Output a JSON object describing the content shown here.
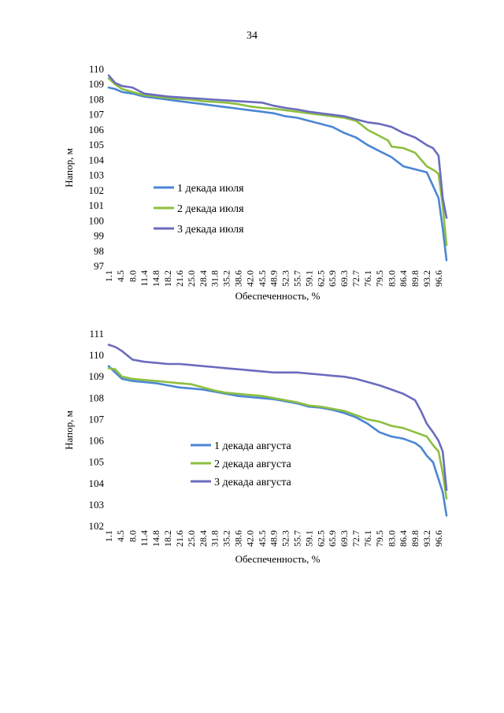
{
  "page": {
    "number": "34"
  },
  "chart_data": [
    {
      "type": "line",
      "xlabel": "Обеспеченность, %",
      "ylabel": "Напор, м",
      "ylim": [
        97,
        110
      ],
      "yticks": [
        97,
        98,
        99,
        100,
        101,
        102,
        103,
        104,
        105,
        106,
        107,
        108,
        109,
        110
      ],
      "xlim": [
        1.1,
        98.9
      ],
      "xticks": [
        1.1,
        4.5,
        8.0,
        11.4,
        14.8,
        18.2,
        21.6,
        25.0,
        28.4,
        31.8,
        35.2,
        38.6,
        42.0,
        45.5,
        48.9,
        52.3,
        55.7,
        59.1,
        62.5,
        65.9,
        69.3,
        72.7,
        76.1,
        79.5,
        83.0,
        86.4,
        89.8,
        93.2,
        96.6
      ],
      "xtick_labels": [
        "1.1",
        "4.5",
        "8.0",
        "11.4",
        "14.8",
        "18.2",
        "21.6",
        "25.0",
        "28.4",
        "31.8",
        "35.2",
        "38.6",
        "42.0",
        "45.5",
        "48.9",
        "52.3",
        "55.7",
        "59.1",
        "62.5",
        "65.9",
        "69.3",
        "72.7",
        "76.1",
        "79.5",
        "83.0",
        "86.4",
        "89.8",
        "93.2",
        "96.6"
      ],
      "grid": false,
      "legend_position": "left-bottom",
      "series": [
        {
          "name": "1 декада июля",
          "color": "#4a86d4",
          "x": [
            1.1,
            3.0,
            5.0,
            8.0,
            11.4,
            14.8,
            18.2,
            21.6,
            25.0,
            28.4,
            31.8,
            35.2,
            38.6,
            42.0,
            45.5,
            48.9,
            52.3,
            55.7,
            59.1,
            62.5,
            65.9,
            69.3,
            72.7,
            76.1,
            79.5,
            83.0,
            86.4,
            89.8,
            93.2,
            95.0,
            96.6,
            97.8,
            98.9
          ],
          "y": [
            108.8,
            108.7,
            108.5,
            108.4,
            108.2,
            108.1,
            108.0,
            107.9,
            107.8,
            107.7,
            107.6,
            107.5,
            107.4,
            107.3,
            107.2,
            107.1,
            106.9,
            106.8,
            106.6,
            106.4,
            106.2,
            105.8,
            105.5,
            105.0,
            104.6,
            104.2,
            103.6,
            103.4,
            103.2,
            102.3,
            101.5,
            99.5,
            97.4
          ]
        },
        {
          "name": "2 декада июля",
          "color": "#8cbf3f",
          "x": [
            1.1,
            3.0,
            5.0,
            8.0,
            11.4,
            14.8,
            18.2,
            21.6,
            25.0,
            28.4,
            31.8,
            35.2,
            38.6,
            42.0,
            45.5,
            48.9,
            52.3,
            55.7,
            59.1,
            62.5,
            65.9,
            69.3,
            72.7,
            74.5,
            76.1,
            79.5,
            82.0,
            83.0,
            86.4,
            89.8,
            93.2,
            95.5,
            96.6,
            97.8,
            98.9
          ],
          "y": [
            109.4,
            109.0,
            108.7,
            108.5,
            108.3,
            108.2,
            108.1,
            108.05,
            108.0,
            107.9,
            107.85,
            107.8,
            107.7,
            107.55,
            107.45,
            107.4,
            107.3,
            107.2,
            107.1,
            107.0,
            106.9,
            106.8,
            106.6,
            106.3,
            106.0,
            105.6,
            105.3,
            104.9,
            104.8,
            104.5,
            103.6,
            103.3,
            103.1,
            101.0,
            98.4
          ]
        },
        {
          "name": "3 декада июля",
          "color": "#6b6bbf",
          "x": [
            1.1,
            3.0,
            5.0,
            8.0,
            11.4,
            14.8,
            18.2,
            21.6,
            25.0,
            28.4,
            31.8,
            35.2,
            38.6,
            42.0,
            45.5,
            48.9,
            52.3,
            55.7,
            59.1,
            62.5,
            65.9,
            69.3,
            72.7,
            76.1,
            79.5,
            83.0,
            86.4,
            89.8,
            93.2,
            95.0,
            96.6,
            97.8,
            98.9
          ],
          "y": [
            109.6,
            109.1,
            108.9,
            108.8,
            108.4,
            108.3,
            108.2,
            108.15,
            108.1,
            108.05,
            108.0,
            107.95,
            107.9,
            107.85,
            107.8,
            107.6,
            107.45,
            107.35,
            107.2,
            107.1,
            107.0,
            106.9,
            106.7,
            106.5,
            106.4,
            106.2,
            105.8,
            105.5,
            105.0,
            104.8,
            104.3,
            101.5,
            100.2
          ]
        }
      ]
    },
    {
      "type": "line",
      "xlabel": "Обеспеченность, %",
      "ylabel": "Напор, м",
      "ylim": [
        102,
        111
      ],
      "yticks": [
        102,
        103,
        104,
        105,
        106,
        107,
        108,
        109,
        110,
        111
      ],
      "xlim": [
        1.1,
        98.9
      ],
      "xticks": [
        1.1,
        4.5,
        8.0,
        11.4,
        14.8,
        18.2,
        21.6,
        25.0,
        28.4,
        31.8,
        35.2,
        38.6,
        42.0,
        45.5,
        48.9,
        52.3,
        55.7,
        59.1,
        62.5,
        65.9,
        69.3,
        72.7,
        76.1,
        79.5,
        83.0,
        86.4,
        89.8,
        93.2,
        96.6
      ],
      "xtick_labels": [
        "1.1",
        "4.5",
        "8.0",
        "11.4",
        "14.8",
        "18.2",
        "21.6",
        "25.0",
        "28.4",
        "31.8",
        "35.2",
        "38.6",
        "42.0",
        "45.5",
        "48.9",
        "52.3",
        "55.7",
        "59.1",
        "62.5",
        "65.9",
        "69.3",
        "72.7",
        "76.1",
        "79.5",
        "83.0",
        "86.4",
        "89.8",
        "93.2",
        "96.6"
      ],
      "grid": false,
      "legend_position": "center-bottom",
      "series": [
        {
          "name": "1 декада августа",
          "color": "#4a86d4",
          "x": [
            1.1,
            3.0,
            5.0,
            8.0,
            11.4,
            14.8,
            18.2,
            21.6,
            25.0,
            28.4,
            31.8,
            35.2,
            38.6,
            42.0,
            45.5,
            48.9,
            52.3,
            55.7,
            59.1,
            62.5,
            65.9,
            69.3,
            72.7,
            76.1,
            79.5,
            83.0,
            86.4,
            89.8,
            91.5,
            93.2,
            95.0,
            96.6,
            97.8,
            98.9
          ],
          "y": [
            109.5,
            109.2,
            108.9,
            108.8,
            108.75,
            108.7,
            108.6,
            108.5,
            108.45,
            108.4,
            108.3,
            108.2,
            108.1,
            108.05,
            108.0,
            107.95,
            107.85,
            107.75,
            107.6,
            107.55,
            107.45,
            107.3,
            107.1,
            106.8,
            106.4,
            106.2,
            106.1,
            105.9,
            105.7,
            105.3,
            105.0,
            104.2,
            103.6,
            102.5
          ]
        },
        {
          "name": "2 декада августа",
          "color": "#8cbf3f",
          "x": [
            1.1,
            3.0,
            5.0,
            8.0,
            11.4,
            14.8,
            18.2,
            21.6,
            25.0,
            28.4,
            31.8,
            35.2,
            38.6,
            42.0,
            45.5,
            48.9,
            52.3,
            55.7,
            59.1,
            62.5,
            65.9,
            69.3,
            72.7,
            76.1,
            79.5,
            83.0,
            86.4,
            89.8,
            93.2,
            95.0,
            96.6,
            97.8,
            98.9
          ],
          "y": [
            109.4,
            109.35,
            109.0,
            108.9,
            108.85,
            108.8,
            108.75,
            108.7,
            108.65,
            108.5,
            108.35,
            108.25,
            108.2,
            108.15,
            108.1,
            108.0,
            107.9,
            107.8,
            107.65,
            107.6,
            107.5,
            107.4,
            107.2,
            107.0,
            106.9,
            106.7,
            106.6,
            106.4,
            106.2,
            105.8,
            105.5,
            104.5,
            103.3
          ]
        },
        {
          "name": "3 декада августа",
          "color": "#6b6bbf",
          "x": [
            1.1,
            3.0,
            5.0,
            8.0,
            11.4,
            14.8,
            18.2,
            21.6,
            25.0,
            28.4,
            31.8,
            35.2,
            38.6,
            42.0,
            45.5,
            48.9,
            52.3,
            55.7,
            59.1,
            62.5,
            65.9,
            69.3,
            72.7,
            76.1,
            79.5,
            83.0,
            86.4,
            89.8,
            91.5,
            93.2,
            95.0,
            96.6,
            97.8,
            98.9
          ],
          "y": [
            110.5,
            110.4,
            110.2,
            109.8,
            109.7,
            109.65,
            109.6,
            109.6,
            109.55,
            109.5,
            109.45,
            109.4,
            109.35,
            109.3,
            109.25,
            109.2,
            109.2,
            109.2,
            109.15,
            109.1,
            109.05,
            109.0,
            108.9,
            108.75,
            108.6,
            108.4,
            108.2,
            107.9,
            107.4,
            106.8,
            106.4,
            106.0,
            105.5,
            103.7
          ]
        }
      ]
    }
  ]
}
